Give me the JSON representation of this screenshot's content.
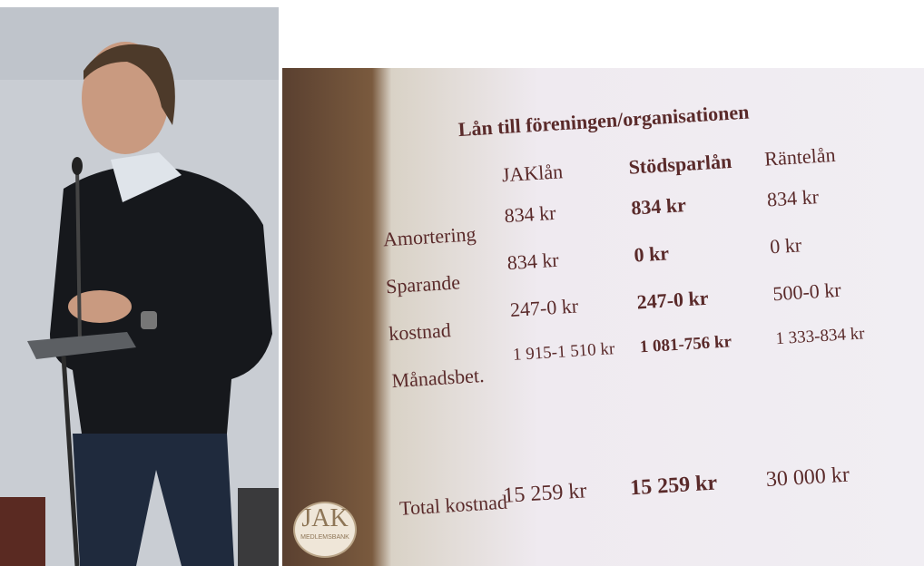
{
  "slide": {
    "title": "Lån till föreningen/organisationen",
    "columns": [
      "JAKlån",
      "Stödsparlån",
      "Räntelån"
    ],
    "rows": [
      {
        "label": "Amortering",
        "cells": [
          "834 kr",
          "834 kr",
          "834 kr"
        ]
      },
      {
        "label": "Sparande",
        "cells": [
          "834 kr",
          "0 kr",
          "0 kr"
        ]
      },
      {
        "label": "kostnad",
        "cells": [
          "247-0 kr",
          "247-0 kr",
          "500-0 kr"
        ]
      },
      {
        "label": "Månadsbet.",
        "cells": [
          "1 915-1 510 kr",
          "1 081-756 kr",
          "1 333-834 kr"
        ]
      }
    ],
    "total": {
      "label": "Total kostnad",
      "cells": [
        "15 259 kr",
        "15 259 kr",
        "30 000 kr"
      ]
    }
  },
  "logo": {
    "text": "JAK",
    "subtext": "MEDLEMSBANK"
  }
}
